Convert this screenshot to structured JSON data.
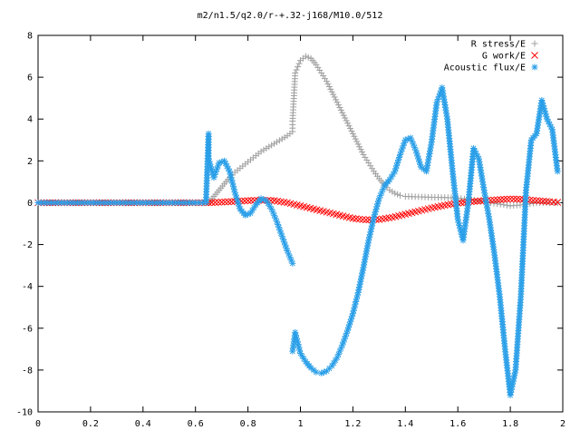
{
  "chart_data": {
    "type": "scatter",
    "title": "m2/n1.5/q2.0/r-+.32-j168/M10.0/512",
    "xlabel": "",
    "ylabel": "",
    "xlim": [
      0,
      2
    ],
    "ylim": [
      -10,
      8
    ],
    "grid": false,
    "legend_position": "top-right",
    "x_ticks": [
      "0",
      "0.2",
      "0.4",
      "0.6",
      "0.8",
      "1",
      "1.2",
      "1.4",
      "1.6",
      "1.8",
      "2"
    ],
    "y_ticks": [
      "-10",
      "-8",
      "-6",
      "-4",
      "-2",
      "0",
      "2",
      "4",
      "6",
      "8"
    ],
    "series": [
      {
        "name": "R stress/E",
        "marker": "+",
        "color": "#a0a0a0",
        "points": [
          [
            0.65,
            0.0
          ],
          [
            0.67,
            0.3
          ],
          [
            0.69,
            0.6
          ],
          [
            0.71,
            0.9
          ],
          [
            0.73,
            1.2
          ],
          [
            0.75,
            1.45
          ],
          [
            0.77,
            1.65
          ],
          [
            0.79,
            1.85
          ],
          [
            0.81,
            2.05
          ],
          [
            0.83,
            2.25
          ],
          [
            0.85,
            2.45
          ],
          [
            0.87,
            2.6
          ],
          [
            0.89,
            2.75
          ],
          [
            0.91,
            2.9
          ],
          [
            0.93,
            3.05
          ],
          [
            0.95,
            3.2
          ],
          [
            0.97,
            3.4
          ],
          [
            0.97,
            3.9
          ],
          [
            0.98,
            6.2
          ],
          [
            0.99,
            6.5
          ],
          [
            1.0,
            6.8
          ],
          [
            1.02,
            7.0
          ],
          [
            1.04,
            6.9
          ],
          [
            1.06,
            6.6
          ],
          [
            1.08,
            6.2
          ],
          [
            1.1,
            5.8
          ],
          [
            1.12,
            5.3
          ],
          [
            1.14,
            4.8
          ],
          [
            1.16,
            4.3
          ],
          [
            1.18,
            3.8
          ],
          [
            1.2,
            3.3
          ],
          [
            1.22,
            2.8
          ],
          [
            1.24,
            2.3
          ],
          [
            1.26,
            1.9
          ],
          [
            1.28,
            1.5
          ],
          [
            1.3,
            1.15
          ],
          [
            1.32,
            0.85
          ],
          [
            1.34,
            0.6
          ],
          [
            1.36,
            0.45
          ],
          [
            1.38,
            0.35
          ],
          [
            1.4,
            0.3
          ],
          [
            1.45,
            0.28
          ],
          [
            1.5,
            0.26
          ],
          [
            1.55,
            0.25
          ],
          [
            1.6,
            0.22
          ],
          [
            1.65,
            0.15
          ],
          [
            1.7,
            0.05
          ],
          [
            1.75,
            -0.05
          ],
          [
            1.8,
            -0.15
          ],
          [
            1.85,
            -0.1
          ],
          [
            1.9,
            0.0
          ],
          [
            1.95,
            0.0
          ],
          [
            1.98,
            0.0
          ]
        ]
      },
      {
        "name": "G work/E",
        "marker": "x",
        "color": "#ff0000",
        "points": [
          [
            0.0,
            0.0
          ],
          [
            0.1,
            0.0
          ],
          [
            0.2,
            0.0
          ],
          [
            0.3,
            0.0
          ],
          [
            0.4,
            0.0
          ],
          [
            0.5,
            0.0
          ],
          [
            0.6,
            0.0
          ],
          [
            0.65,
            0.0
          ],
          [
            0.7,
            0.03
          ],
          [
            0.75,
            0.06
          ],
          [
            0.8,
            0.1
          ],
          [
            0.85,
            0.12
          ],
          [
            0.9,
            0.1
          ],
          [
            0.95,
            0.0
          ],
          [
            1.0,
            -0.15
          ],
          [
            1.05,
            -0.3
          ],
          [
            1.1,
            -0.45
          ],
          [
            1.15,
            -0.6
          ],
          [
            1.2,
            -0.75
          ],
          [
            1.25,
            -0.82
          ],
          [
            1.3,
            -0.8
          ],
          [
            1.35,
            -0.7
          ],
          [
            1.4,
            -0.55
          ],
          [
            1.45,
            -0.4
          ],
          [
            1.5,
            -0.25
          ],
          [
            1.55,
            -0.12
          ],
          [
            1.6,
            -0.02
          ],
          [
            1.65,
            0.05
          ],
          [
            1.7,
            0.1
          ],
          [
            1.75,
            0.14
          ],
          [
            1.8,
            0.18
          ],
          [
            1.85,
            0.16
          ],
          [
            1.9,
            0.1
          ],
          [
            1.95,
            0.05
          ],
          [
            1.98,
            0.02
          ]
        ]
      },
      {
        "name": "Acoustic flux/E",
        "marker": "*",
        "color": "#2a9fe8",
        "points": [
          [
            0.0,
            0.0
          ],
          [
            0.05,
            0.0
          ],
          [
            0.1,
            0.0
          ],
          [
            0.15,
            0.0
          ],
          [
            0.2,
            0.0
          ],
          [
            0.25,
            0.0
          ],
          [
            0.3,
            0.0
          ],
          [
            0.35,
            0.0
          ],
          [
            0.4,
            0.0
          ],
          [
            0.45,
            0.0
          ],
          [
            0.5,
            0.0
          ],
          [
            0.55,
            0.0
          ],
          [
            0.6,
            0.0
          ],
          [
            0.64,
            0.0
          ],
          [
            0.65,
            3.3
          ],
          [
            0.65,
            2.1
          ],
          [
            0.67,
            1.2
          ],
          [
            0.69,
            1.9
          ],
          [
            0.71,
            2.0
          ],
          [
            0.73,
            1.5
          ],
          [
            0.75,
            0.5
          ],
          [
            0.77,
            -0.3
          ],
          [
            0.79,
            -0.6
          ],
          [
            0.81,
            -0.5
          ],
          [
            0.83,
            -0.1
          ],
          [
            0.85,
            0.2
          ],
          [
            0.87,
            0.1
          ],
          [
            0.89,
            -0.3
          ],
          [
            0.91,
            -0.9
          ],
          [
            0.93,
            -1.6
          ],
          [
            0.95,
            -2.3
          ],
          [
            0.97,
            -2.9
          ],
          [
            0.97,
            -7.1
          ],
          [
            0.98,
            -6.2
          ],
          [
            1.0,
            -7.2
          ],
          [
            1.02,
            -7.6
          ],
          [
            1.04,
            -7.9
          ],
          [
            1.06,
            -8.1
          ],
          [
            1.08,
            -8.15
          ],
          [
            1.1,
            -8.05
          ],
          [
            1.12,
            -7.8
          ],
          [
            1.14,
            -7.4
          ],
          [
            1.16,
            -6.8
          ],
          [
            1.18,
            -6.1
          ],
          [
            1.2,
            -5.3
          ],
          [
            1.22,
            -4.3
          ],
          [
            1.24,
            -3.1
          ],
          [
            1.26,
            -1.8
          ],
          [
            1.28,
            -0.7
          ],
          [
            1.3,
            0.2
          ],
          [
            1.32,
            0.8
          ],
          [
            1.34,
            1.1
          ],
          [
            1.36,
            1.5
          ],
          [
            1.38,
            2.3
          ],
          [
            1.4,
            3.0
          ],
          [
            1.42,
            3.1
          ],
          [
            1.44,
            2.5
          ],
          [
            1.46,
            1.7
          ],
          [
            1.48,
            1.5
          ],
          [
            1.5,
            2.9
          ],
          [
            1.52,
            4.8
          ],
          [
            1.54,
            5.5
          ],
          [
            1.56,
            4.0
          ],
          [
            1.58,
            1.5
          ],
          [
            1.6,
            -0.8
          ],
          [
            1.62,
            -1.8
          ],
          [
            1.64,
            0.0
          ],
          [
            1.66,
            2.6
          ],
          [
            1.68,
            2.1
          ],
          [
            1.7,
            0.6
          ],
          [
            1.72,
            -0.8
          ],
          [
            1.74,
            -2.5
          ],
          [
            1.76,
            -4.5
          ],
          [
            1.78,
            -7.0
          ],
          [
            1.8,
            -9.2
          ],
          [
            1.82,
            -8.0
          ],
          [
            1.84,
            -4.5
          ],
          [
            1.86,
            0.6
          ],
          [
            1.88,
            3.0
          ],
          [
            1.9,
            3.3
          ],
          [
            1.92,
            4.9
          ],
          [
            1.94,
            4.0
          ],
          [
            1.96,
            3.5
          ],
          [
            1.98,
            1.5
          ]
        ]
      }
    ]
  }
}
